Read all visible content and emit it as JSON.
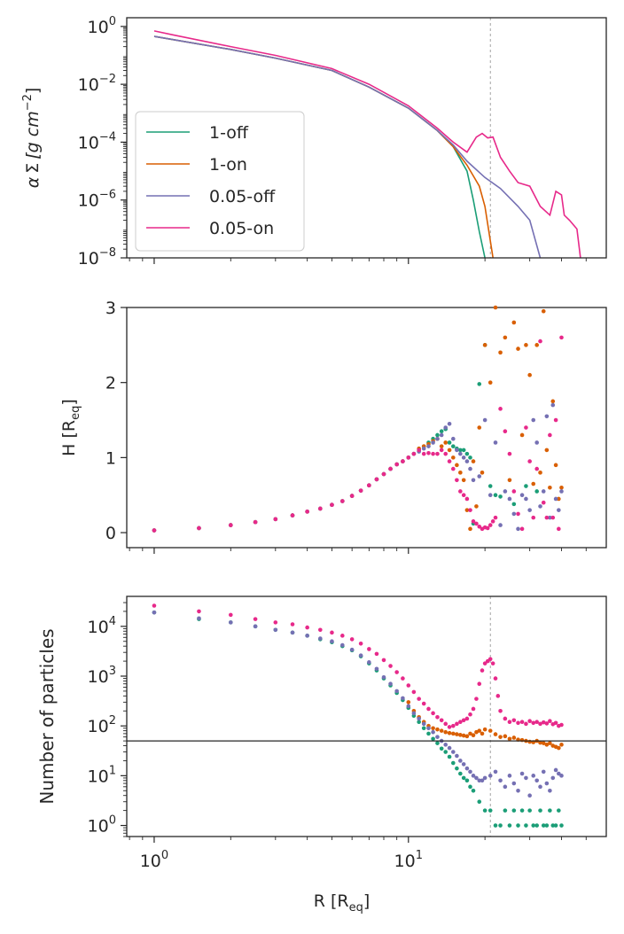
{
  "figure": {
    "xlabel_main": "R [R",
    "xlabel_sub": "eq",
    "xlabel_close": "]",
    "x_tick_labels": [
      {
        "base": "10",
        "exp": "0"
      },
      {
        "base": "10",
        "exp": "1"
      }
    ]
  },
  "colors": {
    "1-off": "#1b9e77",
    "1-on": "#d95f02",
    "0.05-off": "#7570b3",
    "0.05-on": "#e7298a",
    "axis": "#262626",
    "vline": "#999999"
  },
  "chart_data": [
    {
      "type": "line",
      "title": "",
      "xlabel": "R [R_eq]",
      "ylabel_parts": {
        "alpha": "α",
        "sigma": "Σ",
        "unit": "[g cm",
        "exp": "−2",
        "close": "]"
      },
      "xscale": "log",
      "yscale": "log",
      "xlim": [
        0.78,
        60
      ],
      "ylim": [
        1e-08,
        2
      ],
      "y_ticks": [
        {
          "value": 1,
          "base": "10",
          "exp": "0"
        },
        {
          "value": 0.01,
          "base": "10",
          "exp": "−2"
        },
        {
          "value": 0.0001,
          "base": "10",
          "exp": "−4"
        },
        {
          "value": 1e-06,
          "base": "10",
          "exp": "−6"
        },
        {
          "value": 1e-08,
          "base": "10",
          "exp": "−8"
        }
      ],
      "vline_x": 21,
      "legend": {
        "location": "lower-left",
        "entries": [
          "1-off",
          "1-on",
          "0.05-off",
          "0.05-on"
        ]
      },
      "series": [
        {
          "name": "1-off",
          "x": [
            1,
            2,
            3,
            5,
            7,
            10,
            13,
            15,
            17,
            18,
            19,
            20
          ],
          "y": [
            0.45,
            0.16,
            0.08,
            0.03,
            0.008,
            0.0015,
            0.00025,
            7e-05,
            1e-05,
            1e-06,
            8e-08,
            1e-08
          ]
        },
        {
          "name": "1-on",
          "x": [
            1,
            2,
            3,
            5,
            7,
            10,
            13,
            15,
            17,
            19,
            20,
            21.5
          ],
          "y": [
            0.45,
            0.16,
            0.08,
            0.03,
            0.008,
            0.0015,
            0.00025,
            7e-05,
            1.6e-05,
            3e-06,
            6e-07,
            1e-08
          ]
        },
        {
          "name": "0.05-off",
          "x": [
            1,
            2,
            3,
            5,
            7,
            10,
            13,
            15,
            17,
            20,
            23,
            27,
            30,
            33
          ],
          "y": [
            0.45,
            0.16,
            0.08,
            0.03,
            0.008,
            0.0015,
            0.00025,
            8e-05,
            2.2e-05,
            6e-06,
            2.5e-06,
            6e-07,
            2e-07,
            1e-08
          ]
        },
        {
          "name": "0.05-on",
          "x": [
            1,
            1.2,
            2,
            3,
            5,
            7,
            10,
            13,
            15,
            17,
            18.5,
            19.5,
            20.5,
            21.5,
            23,
            25,
            27,
            30,
            33,
            36,
            38,
            40,
            41,
            43,
            46,
            47.5
          ],
          "y": [
            0.7,
            0.5,
            0.2,
            0.1,
            0.035,
            0.01,
            0.0018,
            0.0003,
            0.0001,
            4.5e-05,
            0.00015,
            0.0002,
            0.00014,
            0.00015,
            3e-05,
            1e-05,
            4e-06,
            3e-06,
            6e-07,
            3e-07,
            2e-06,
            1.5e-06,
            3e-07,
            2e-07,
            1e-07,
            1e-08
          ]
        }
      ]
    },
    {
      "type": "scatter",
      "title": "",
      "ylabel_main": "H [R",
      "ylabel_sub": "eq",
      "ylabel_close": "]",
      "xscale": "log",
      "yscale": "linear",
      "xlim": [
        0.78,
        60
      ],
      "ylim": [
        -0.2,
        3
      ],
      "y_ticks": [
        0,
        1,
        2,
        3
      ],
      "base_x": [
        1,
        1.5,
        2,
        2.5,
        3,
        3.5,
        4,
        4.5,
        5,
        5.5,
        6,
        6.5,
        7,
        7.5,
        8,
        8.5,
        9,
        9.5,
        10
      ],
      "base_y": [
        0.03,
        0.06,
        0.1,
        0.14,
        0.18,
        0.23,
        0.28,
        0.32,
        0.37,
        0.42,
        0.49,
        0.56,
        0.63,
        0.71,
        0.78,
        0.85,
        0.91,
        0.95,
        1.0
      ],
      "series": [
        {
          "name": "1-off",
          "x": [
            10.5,
            11,
            11.5,
            12,
            12.5,
            13,
            13.5,
            14,
            14.5,
            15,
            15.5,
            16,
            16.5,
            17,
            17.5,
            18,
            19,
            20,
            21,
            22,
            23,
            26,
            29,
            32
          ],
          "y": [
            1.05,
            1.1,
            1.15,
            1.2,
            1.25,
            1.3,
            1.35,
            1.38,
            1.2,
            1.15,
            1.12,
            1.1,
            1.1,
            1.05,
            1.0,
            0.12,
            1.98,
            2.5,
            0.62,
            0.5,
            0.48,
            0.38,
            0.62,
            0.55
          ]
        },
        {
          "name": "1-on",
          "x": [
            10.5,
            11,
            11.5,
            12,
            12.5,
            13,
            13.5,
            14,
            14.5,
            15,
            15.5,
            16,
            16.5,
            17,
            17.5,
            18,
            18.5,
            19,
            19.5,
            20,
            21,
            22,
            23,
            24,
            25,
            26,
            27,
            28,
            29,
            30,
            31,
            32,
            33,
            34,
            35,
            36,
            37,
            38,
            39,
            40
          ],
          "y": [
            1.05,
            1.12,
            1.15,
            1.18,
            1.22,
            1.25,
            1.15,
            1.2,
            1.1,
            1.0,
            0.9,
            0.8,
            0.7,
            0.3,
            0.05,
            0.95,
            0.35,
            1.4,
            0.8,
            2.5,
            2.0,
            3.0,
            2.4,
            2.6,
            0.7,
            2.8,
            2.45,
            1.3,
            2.5,
            2.1,
            0.65,
            2.5,
            0.8,
            2.95,
            1.1,
            0.6,
            1.75,
            0.9,
            0.45,
            0.6
          ]
        },
        {
          "name": "0.05-off",
          "x": [
            10.5,
            11,
            11.5,
            12,
            12.5,
            13,
            13.5,
            14,
            14.5,
            15,
            15.5,
            16,
            16.5,
            17,
            17.5,
            18,
            19,
            20,
            21,
            22,
            23,
            24,
            25,
            26,
            27,
            28,
            29,
            30,
            31,
            32,
            33,
            34,
            35,
            36,
            37,
            38,
            39,
            40
          ],
          "y": [
            1.05,
            1.08,
            1.12,
            1.15,
            1.2,
            1.25,
            1.3,
            1.4,
            1.45,
            1.25,
            1.1,
            1.05,
            1.0,
            0.95,
            0.85,
            0.7,
            0.75,
            1.5,
            0.5,
            1.2,
            0.1,
            0.55,
            0.45,
            0.25,
            0.05,
            0.5,
            0.45,
            0.3,
            1.5,
            1.2,
            0.35,
            0.55,
            1.55,
            0.2,
            1.7,
            0.45,
            0.3,
            0.55
          ]
        },
        {
          "name": "0.05-on",
          "x": [
            10.5,
            11,
            11.5,
            12,
            12.5,
            13,
            13.5,
            14,
            14.5,
            15,
            15.5,
            16,
            16.5,
            17,
            17.5,
            18,
            18.5,
            19,
            19.5,
            20,
            20.5,
            21,
            21.5,
            22,
            23,
            24,
            25,
            26,
            27,
            28,
            29,
            30,
            31,
            32,
            33,
            34,
            35,
            36,
            37,
            38,
            39,
            40
          ],
          "y": [
            1.05,
            1.1,
            1.05,
            1.06,
            1.05,
            1.05,
            1.1,
            1.05,
            0.95,
            0.85,
            0.7,
            0.55,
            0.5,
            0.45,
            0.3,
            0.15,
            0.12,
            0.08,
            0.05,
            0.07,
            0.06,
            0.1,
            0.15,
            0.2,
            1.65,
            1.35,
            1.05,
            0.55,
            0.25,
            0.05,
            1.4,
            0.95,
            0.2,
            0.85,
            2.55,
            0.4,
            0.2,
            1.3,
            0.2,
            1.5,
            0.05,
            2.6
          ]
        }
      ]
    },
    {
      "type": "scatter",
      "title": "",
      "ylabel": "Number of particles",
      "xscale": "log",
      "yscale": "log",
      "xlim": [
        0.78,
        60
      ],
      "ylim": [
        0.6,
        40000
      ],
      "y_ticks": [
        {
          "value": 1,
          "base": "10",
          "exp": "0"
        },
        {
          "value": 10,
          "base": "10",
          "exp": "1"
        },
        {
          "value": 100,
          "base": "10",
          "exp": "2"
        },
        {
          "value": 1000,
          "base": "10",
          "exp": "3"
        },
        {
          "value": 10000,
          "base": "10",
          "exp": "4"
        }
      ],
      "hline_y": 50,
      "vline_x": 21,
      "series": [
        {
          "name": "1-off",
          "x": [
            1,
            1.5,
            2,
            2.5,
            3,
            3.5,
            4,
            4.5,
            5,
            5.5,
            6,
            6.5,
            7,
            7.5,
            8,
            8.5,
            9,
            9.5,
            10,
            10.5,
            11,
            11.5,
            12,
            12.5,
            13,
            13.5,
            14,
            14.5,
            15,
            15.5,
            16,
            16.5,
            17,
            17.5,
            18,
            19,
            20,
            21,
            22,
            23,
            24,
            25,
            26,
            27,
            28,
            29,
            30,
            31,
            32,
            33,
            34,
            35,
            36,
            37,
            38,
            39,
            40
          ],
          "y": [
            19000,
            14000,
            12000,
            10000,
            8500,
            7500,
            6500,
            5500,
            4800,
            4000,
            3300,
            2500,
            1800,
            1300,
            900,
            650,
            460,
            330,
            230,
            160,
            120,
            90,
            70,
            55,
            45,
            35,
            30,
            24,
            18,
            14,
            11,
            9,
            8,
            6,
            5,
            3,
            2,
            2,
            1,
            1,
            2,
            1,
            2,
            1,
            2,
            1,
            2,
            1,
            1,
            2,
            1,
            1,
            2,
            1,
            1,
            2,
            1
          ]
        },
        {
          "name": "1-on",
          "x": [
            10,
            10.5,
            11,
            11.5,
            12,
            12.5,
            13,
            13.5,
            14,
            14.5,
            15,
            15.5,
            16,
            16.5,
            17,
            17.5,
            18,
            18.5,
            19,
            19.5,
            20,
            21,
            22,
            23,
            24,
            25,
            26,
            27,
            28,
            29,
            30,
            31,
            32,
            33,
            34,
            35,
            36,
            37,
            38,
            39,
            40
          ],
          "y": [
            300,
            200,
            150,
            120,
            100,
            90,
            85,
            80,
            75,
            72,
            70,
            68,
            66,
            64,
            62,
            70,
            65,
            75,
            80,
            70,
            85,
            80,
            68,
            60,
            62,
            55,
            58,
            53,
            52,
            50,
            48,
            47,
            50,
            46,
            45,
            42,
            45,
            40,
            38,
            36,
            42
          ]
        },
        {
          "name": "0.05-off",
          "x": [
            1,
            1.5,
            2,
            2.5,
            3,
            3.5,
            4,
            4.5,
            5,
            5.5,
            6,
            6.5,
            7,
            7.5,
            8,
            8.5,
            9,
            9.5,
            10,
            10.5,
            11,
            11.5,
            12,
            12.5,
            13,
            13.5,
            14,
            14.5,
            15,
            15.5,
            16,
            16.5,
            17,
            17.5,
            18,
            18.5,
            19,
            19.5,
            20,
            21,
            22,
            23,
            24,
            25,
            26,
            27,
            28,
            29,
            30,
            31,
            32,
            33,
            34,
            35,
            36,
            37,
            38,
            39,
            40
          ],
          "y": [
            19000,
            14500,
            12000,
            10000,
            8500,
            7500,
            6500,
            5700,
            5000,
            4200,
            3400,
            2600,
            1900,
            1400,
            950,
            700,
            500,
            360,
            250,
            180,
            140,
            110,
            90,
            75,
            60,
            50,
            42,
            36,
            30,
            25,
            20,
            17,
            14,
            12,
            10,
            9,
            8,
            8,
            9,
            10,
            12,
            8,
            6,
            10,
            7,
            5,
            11,
            9,
            4,
            10,
            8,
            6,
            12,
            7,
            5,
            9,
            13,
            11,
            10
          ]
        },
        {
          "name": "0.05-on",
          "x": [
            1,
            1.5,
            2,
            2.5,
            3,
            3.5,
            4,
            4.5,
            5,
            5.5,
            6,
            6.5,
            7,
            7.5,
            8,
            8.5,
            9,
            9.5,
            10,
            10.5,
            11,
            11.5,
            12,
            12.5,
            13,
            13.5,
            14,
            14.5,
            15,
            15.5,
            16,
            16.5,
            17,
            17.5,
            18,
            18.5,
            19,
            19.5,
            20,
            20.5,
            21,
            21.5,
            22,
            22.5,
            23,
            24,
            25,
            26,
            27,
            28,
            29,
            30,
            31,
            32,
            33,
            34,
            35,
            36,
            37,
            38,
            39,
            40
          ],
          "y": [
            26000,
            20000,
            17000,
            14000,
            12000,
            11000,
            9500,
            8500,
            7500,
            6500,
            5500,
            4500,
            3500,
            2800,
            2100,
            1600,
            1200,
            900,
            650,
            480,
            350,
            280,
            220,
            180,
            150,
            130,
            110,
            95,
            100,
            110,
            120,
            130,
            140,
            170,
            220,
            350,
            700,
            1300,
            1800,
            2000,
            2200,
            1800,
            900,
            400,
            200,
            140,
            120,
            130,
            115,
            120,
            110,
            125,
            115,
            120,
            110,
            118,
            112,
            125,
            108,
            115,
            100,
            105
          ]
        }
      ]
    }
  ]
}
